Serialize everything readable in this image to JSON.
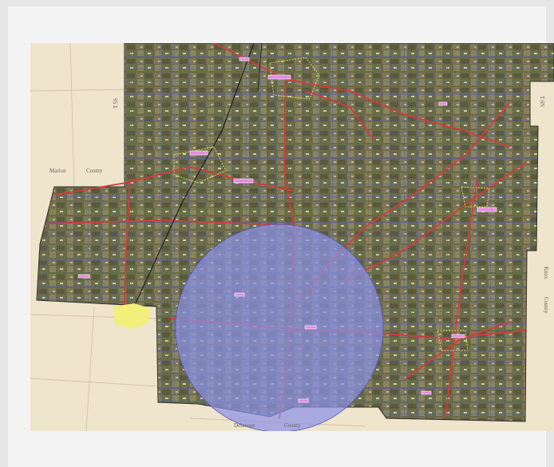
{
  "map": {
    "labels": {
      "county_left_a": "Marion",
      "county_left_b": "County",
      "county_bottom_a": "Delaware",
      "county_bottom_b": "County",
      "county_right_a": "Knox",
      "county_right_b": "County",
      "township_left": "T.5S",
      "township_right": "T.6N"
    },
    "colors": {
      "background": "#efe4cc",
      "county_fill": "#6d6a4a",
      "major_road": "#d83a3a",
      "local_road": "#3d5fc8",
      "railroad": "#1a1a1a",
      "buffer_circle": "#8a92e6",
      "town_yellow": "#f2ef7a",
      "place_tag": "#e48be0"
    },
    "features": {
      "buffer_circle": "circular coverage area",
      "place_tags": 12
    }
  }
}
